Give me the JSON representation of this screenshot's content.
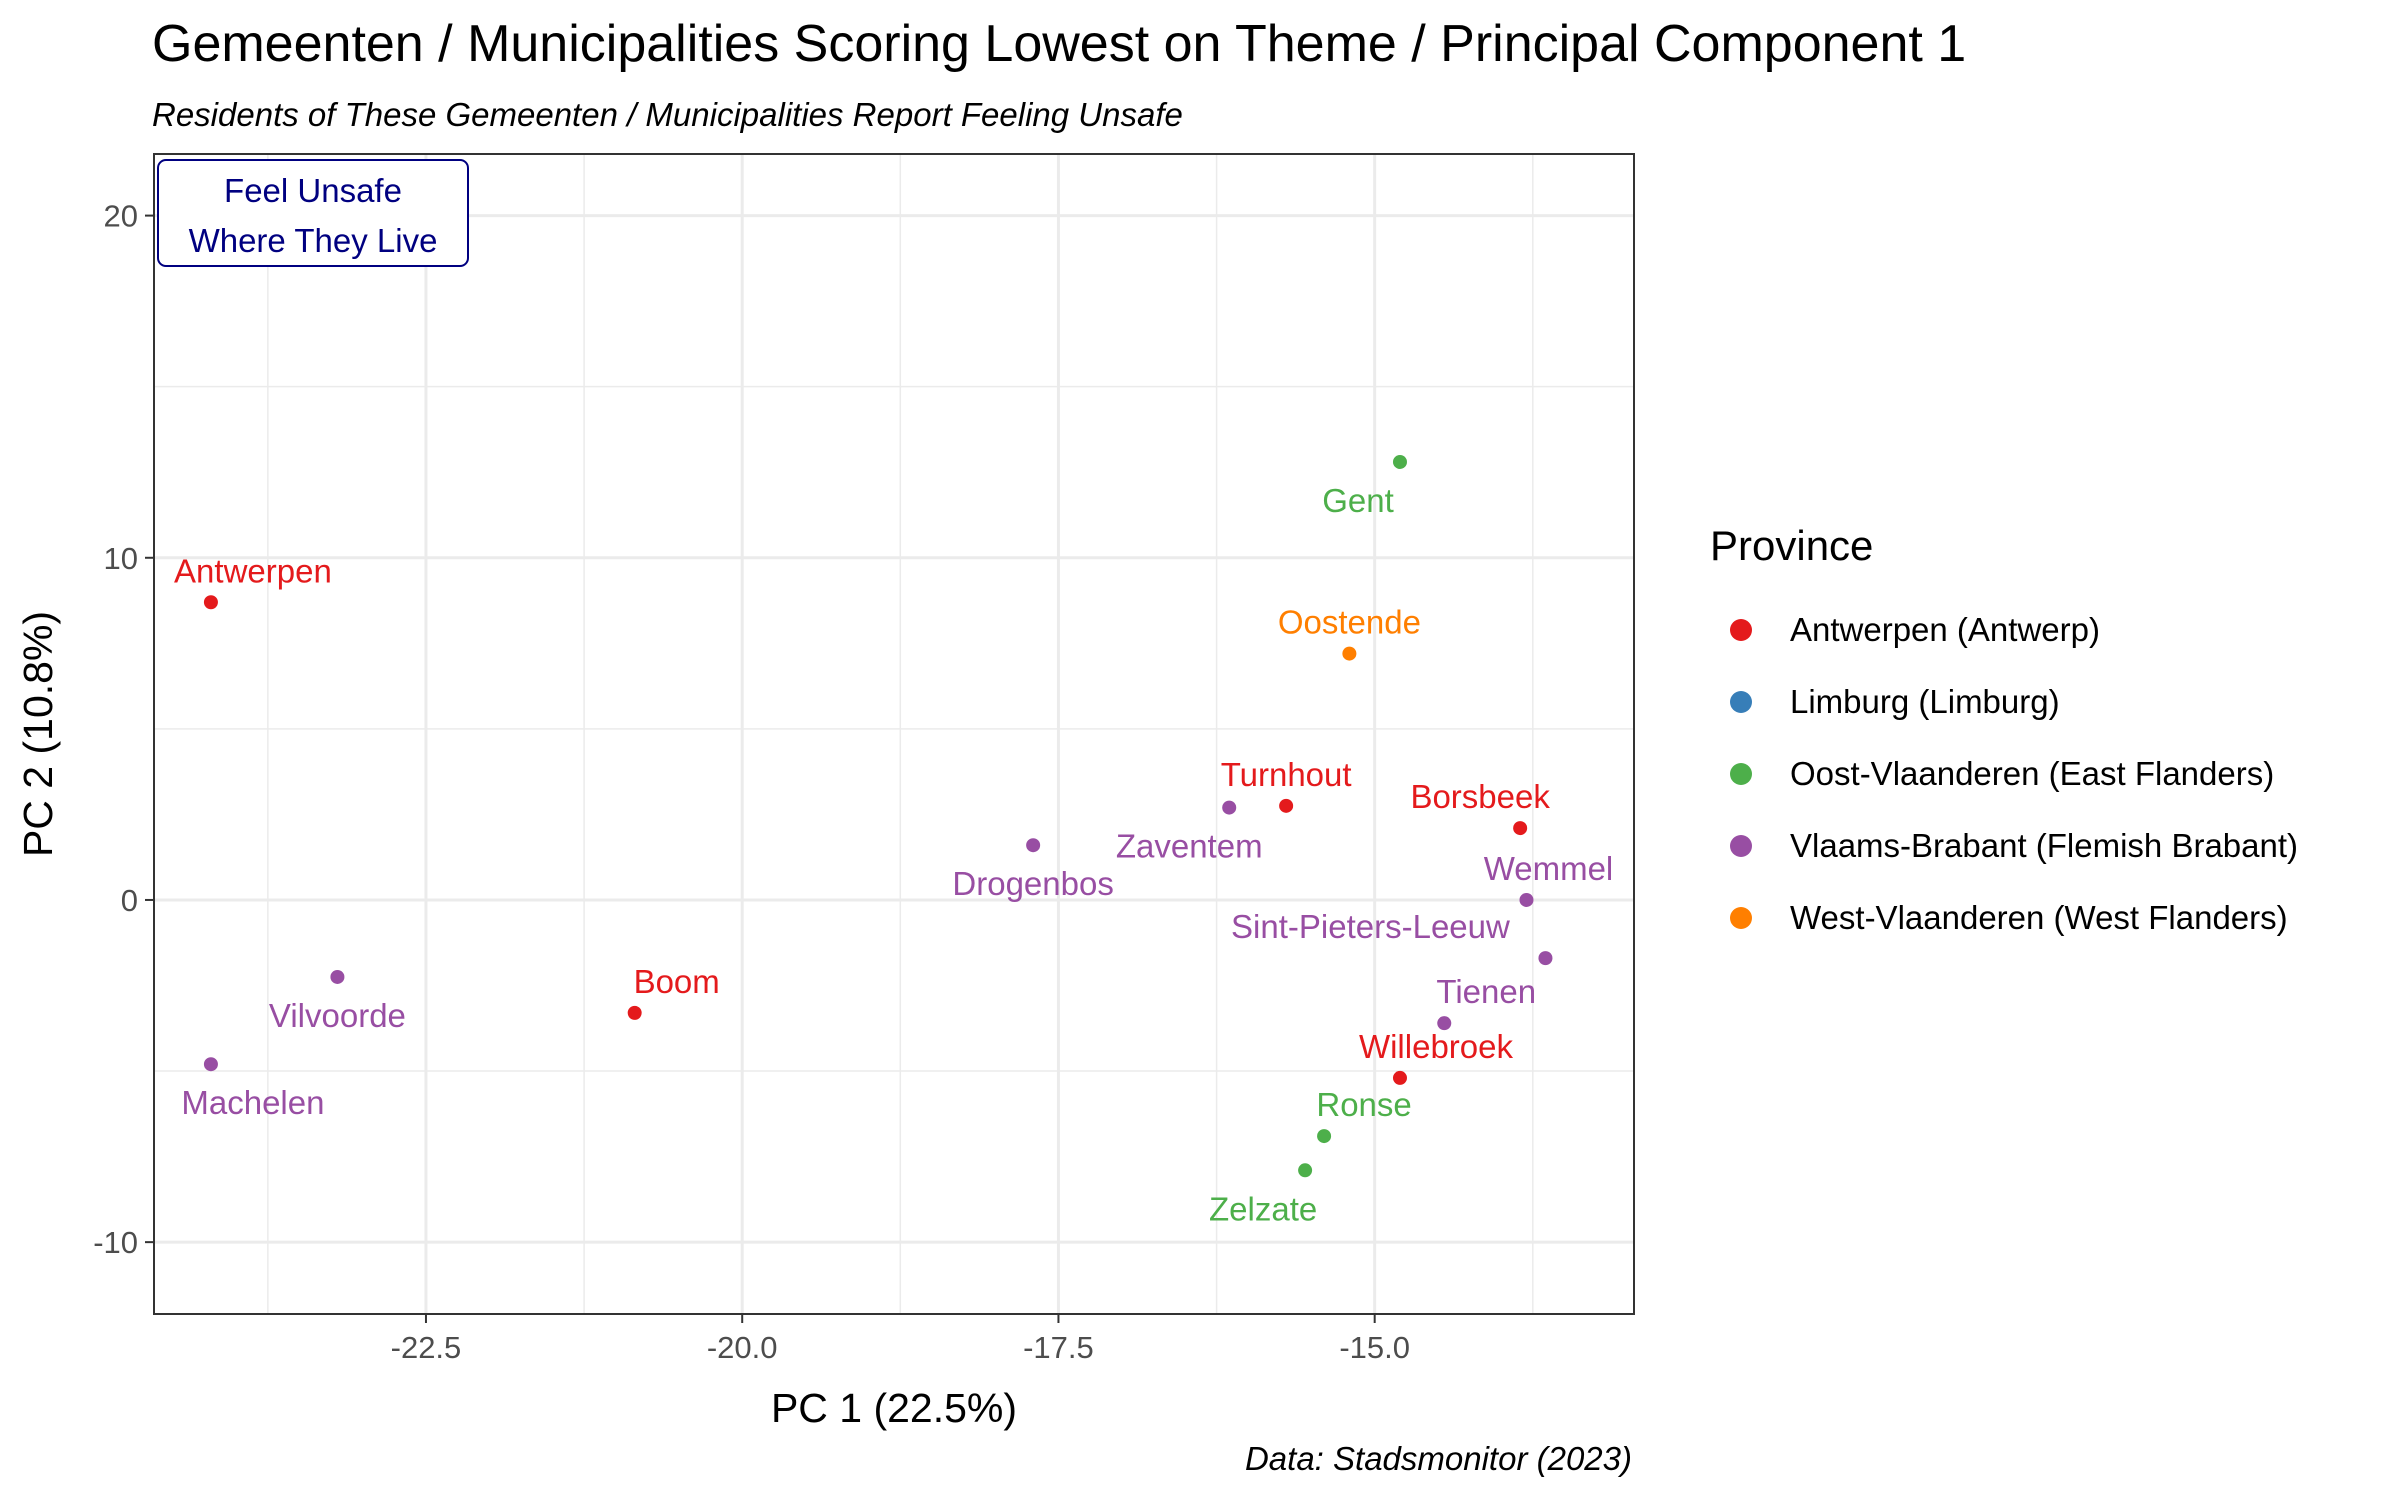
{
  "chart_data": {
    "type": "scatter",
    "title": "Gemeenten / Municipalities Scoring Lowest on Theme / Principal Component 1",
    "subtitle": "Residents of These Gemeenten / Municipalities Report Feeling Unsafe",
    "caption": "Data: Stadsmonitor (2023)",
    "xlabel": "PC 1 (22.5%)",
    "ylabel": "PC 2 (10.8%)",
    "xlim": [
      -24.65,
      -12.95
    ],
    "ylim": [
      -12.1,
      21.8
    ],
    "xticks": [
      -22.5,
      -20.0,
      -17.5,
      -15.0
    ],
    "xtick_labels": [
      "-22.5",
      "-20.0",
      "-17.5",
      "-15.0"
    ],
    "yticks": [
      -10,
      0,
      10,
      20
    ],
    "ytick_labels": [
      "-10",
      "0",
      "10",
      "20"
    ],
    "grid": true,
    "annotation": "Feel Unsafe\nWhere They Live",
    "legend": {
      "title": "Province",
      "position": "right",
      "items": [
        {
          "label": "Antwerpen (Antwerp)",
          "color": "#E41A1C"
        },
        {
          "label": "Limburg (Limburg)",
          "color": "#377EB8"
        },
        {
          "label": "Oost-Vlaanderen (East Flanders)",
          "color": "#4DAF4A"
        },
        {
          "label": "Vlaams-Brabant (Flemish Brabant)",
          "color": "#984EA3"
        },
        {
          "label": "West-Vlaanderen (West Flanders)",
          "color": "#FF7F00"
        }
      ]
    },
    "points": [
      {
        "label": "Antwerpen",
        "x": -24.2,
        "y": 8.7,
        "province": "Antwerpen (Antwerp)",
        "color": "#E41A1C",
        "label_pos": "above"
      },
      {
        "label": "Gent",
        "x": -14.8,
        "y": 12.8,
        "province": "Oost-Vlaanderen (East Flanders)",
        "color": "#4DAF4A",
        "label_pos": "below-left"
      },
      {
        "label": "Oostende",
        "x": -15.2,
        "y": 7.2,
        "province": "West-Vlaanderen (West Flanders)",
        "color": "#FF7F00",
        "label_pos": "above"
      },
      {
        "label": "Turnhout",
        "x": -15.7,
        "y": 2.75,
        "province": "Antwerpen (Antwerp)",
        "color": "#E41A1C",
        "label_pos": "above"
      },
      {
        "label": "Zaventem",
        "x": -16.15,
        "y": 2.7,
        "province": "Vlaams-Brabant (Flemish Brabant)",
        "color": "#984EA3",
        "label_pos": "below-left"
      },
      {
        "label": "Borsbeek",
        "x": -13.85,
        "y": 2.1,
        "province": "Antwerpen (Antwerp)",
        "color": "#E41A1C",
        "label_pos": "above-left"
      },
      {
        "label": "Drogenbos",
        "x": -17.7,
        "y": 1.6,
        "province": "Vlaams-Brabant (Flemish Brabant)",
        "color": "#984EA3",
        "label_pos": "below"
      },
      {
        "label": "Wemmel",
        "x": -13.8,
        "y": 0.0,
        "province": "Vlaams-Brabant (Flemish Brabant)",
        "color": "#984EA3",
        "label_pos": "above"
      },
      {
        "label": "Sint-Pieters-Leeuw",
        "x": -13.65,
        "y": -1.7,
        "province": "Vlaams-Brabant (Flemish Brabant)",
        "color": "#984EA3",
        "label_pos": "above-left"
      },
      {
        "label": "Tienen",
        "x": -14.45,
        "y": -3.6,
        "province": "Vlaams-Brabant (Flemish Brabant)",
        "color": "#984EA3",
        "label_pos": "above-right"
      },
      {
        "label": "Willebroek",
        "x": -14.8,
        "y": -5.2,
        "province": "Antwerpen (Antwerp)",
        "color": "#E41A1C",
        "label_pos": "above-right"
      },
      {
        "label": "Ronse",
        "x": -15.4,
        "y": -6.9,
        "province": "Oost-Vlaanderen (East Flanders)",
        "color": "#4DAF4A",
        "label_pos": "above-right"
      },
      {
        "label": "Zelzate",
        "x": -15.55,
        "y": -7.9,
        "province": "Oost-Vlaanderen (East Flanders)",
        "color": "#4DAF4A",
        "label_pos": "below-left"
      },
      {
        "label": "Boom",
        "x": -20.85,
        "y": -3.3,
        "province": "Antwerpen (Antwerp)",
        "color": "#E41A1C",
        "label_pos": "above-right"
      },
      {
        "label": "Vilvoorde",
        "x": -23.2,
        "y": -2.25,
        "province": "Vlaams-Brabant (Flemish Brabant)",
        "color": "#984EA3",
        "label_pos": "below-left"
      },
      {
        "label": "Machelen",
        "x": -24.2,
        "y": -4.8,
        "province": "Vlaams-Brabant (Flemish Brabant)",
        "color": "#984EA3",
        "label_pos": "below"
      }
    ]
  }
}
